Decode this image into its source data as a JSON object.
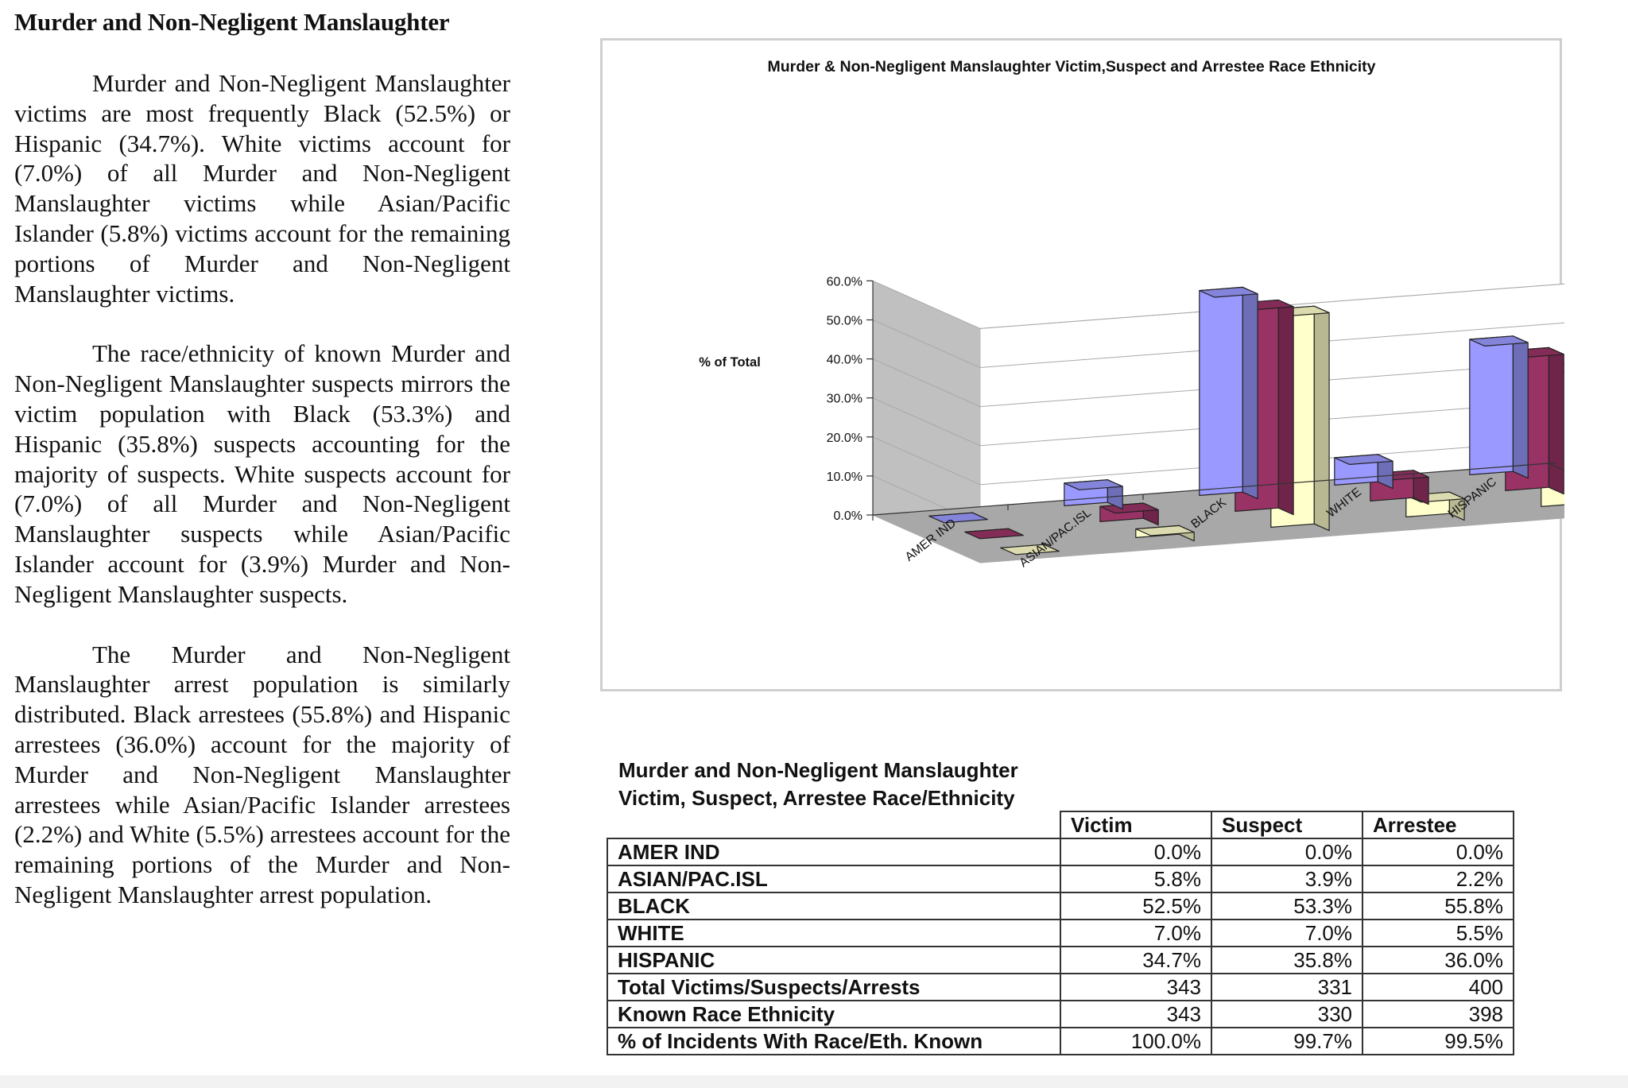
{
  "document": {
    "heading": "Murder and Non-Negligent Manslaughter",
    "paragraphs": [
      "Murder and Non-Negligent Manslaughter victims are most frequently Black (52.5%) or Hispanic (34.7%).  White victims account for (7.0%) of all Murder and Non-Negligent Manslaughter victims while Asian/Pacific Islander (5.8%) victims account for the remaining portions of Murder and Non-Negligent Manslaughter victims.",
      "The race/ethnicity of known Murder and Non-Negligent Manslaughter suspects mirrors the victim population with Black (53.3%) and Hispanic (35.8%) suspects accounting for the majority of suspects.  White suspects account for (7.0%) of all Murder and Non-Negligent Manslaughter suspects while Asian/Pacific Islander account for (3.9%) Murder and Non-Negligent Manslaughter suspects.",
      "The Murder and Non-Negligent Manslaughter arrest population is similarly distributed.  Black arrestees (55.8%) and Hispanic arrestees (36.0%) account for the majority of Murder and Non-Negligent Manslaughter arrestees while Asian/Pacific Islander arrestees (2.2%) and White (5.5%) arrestees account for the remaining portions of the Murder and Non-Negligent Manslaughter arrest population."
    ]
  },
  "chart_data": {
    "type": "bar",
    "variant": "3d-clustered-column",
    "title": "Murder & Non-Negligent Manslaughter Victim,Suspect and Arrestee Race Ethnicity",
    "ylabel": "% of Total",
    "xlabel": "",
    "categories": [
      "AMER IND",
      "ASIAN/PAC.ISL",
      "BLACK",
      "WHITE",
      "HISPANIC"
    ],
    "series": [
      {
        "name": "Victim",
        "values": [
          0.0,
          5.8,
          52.5,
          7.0,
          34.7
        ],
        "color": "#9999ff"
      },
      {
        "name": "Suspect",
        "values": [
          0.0,
          3.9,
          53.3,
          7.0,
          35.8
        ],
        "color": "#993366"
      },
      {
        "name": "Arrestee",
        "values": [
          0.0,
          2.2,
          55.8,
          5.5,
          36.0
        ],
        "color": "#ffffcc"
      }
    ],
    "ylim": [
      0,
      60
    ],
    "yticks": [
      "0.0%",
      "10.0%",
      "20.0%",
      "30.0%",
      "40.0%",
      "50.0%",
      "60.0%"
    ],
    "grid": true,
    "legend": "depth-axis-right"
  },
  "table": {
    "title_line1": "Murder and Non-Negligent Manslaughter",
    "title_line2": "Victim, Suspect, Arrestee Race/Ethnicity",
    "columns": [
      "Victim",
      "Suspect",
      "Arrestee"
    ],
    "rows": [
      {
        "label": "AMER IND",
        "values": [
          "0.0%",
          "0.0%",
          "0.0%"
        ]
      },
      {
        "label": "ASIAN/PAC.ISL",
        "values": [
          "5.8%",
          "3.9%",
          "2.2%"
        ]
      },
      {
        "label": "BLACK",
        "values": [
          "52.5%",
          "53.3%",
          "55.8%"
        ]
      },
      {
        "label": "WHITE",
        "values": [
          "7.0%",
          "7.0%",
          "5.5%"
        ]
      },
      {
        "label": "HISPANIC",
        "values": [
          "34.7%",
          "35.8%",
          "36.0%"
        ]
      },
      {
        "label": "Total Victims/Suspects/Arrests",
        "values": [
          "343",
          "331",
          "400"
        ]
      },
      {
        "label": "Known Race Ethnicity",
        "values": [
          "343",
          "330",
          "398"
        ]
      },
      {
        "label": "% of Incidents With Race/Eth. Known",
        "values": [
          "100.0%",
          "99.7%",
          "99.5%"
        ]
      }
    ]
  }
}
